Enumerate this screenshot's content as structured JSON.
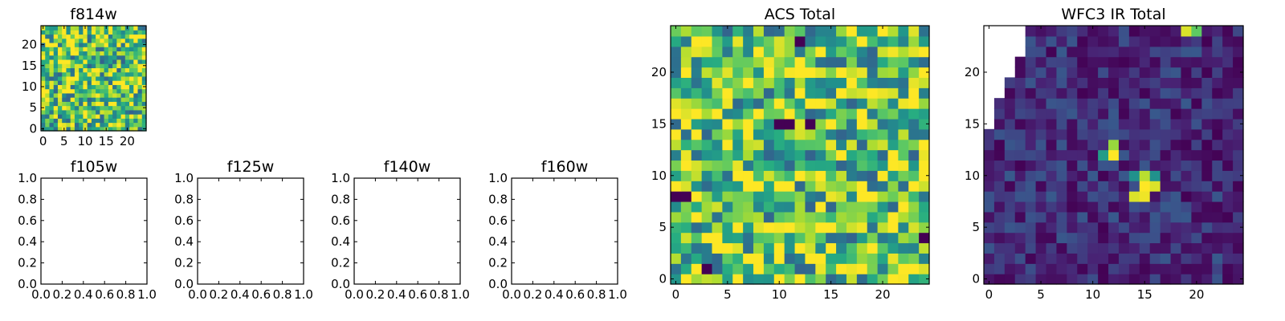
{
  "chart_data": [
    {
      "type": "heatmap",
      "title": "f814w",
      "grid_size": 25,
      "colormap": "viridis",
      "xlim": [
        -0.5,
        24.5
      ],
      "ylim": [
        -0.5,
        24.5
      ],
      "xticks": [
        0,
        5,
        10,
        15,
        20
      ],
      "xtick_labels": [
        "0",
        "5",
        "10",
        "15",
        "20"
      ],
      "yticks": [
        0,
        5,
        10,
        15,
        20
      ],
      "ytick_labels": [
        "0",
        "5",
        "10",
        "15",
        "20"
      ],
      "value_model": {
        "pattern": "noise",
        "base": 0.72,
        "spread": 0.4,
        "seed": 11
      },
      "features": []
    },
    {
      "type": "empty",
      "title": "f105w",
      "xlim": [
        0,
        1
      ],
      "ylim": [
        0,
        1
      ],
      "xticks": [
        0,
        0.2,
        0.4,
        0.6,
        0.8,
        1.0
      ],
      "xtick_labels": [
        "0.0",
        "0.2",
        "0.4",
        "0.6",
        "0.8",
        "1.0"
      ],
      "yticks": [
        0,
        0.2,
        0.4,
        0.6,
        0.8,
        1.0
      ],
      "ytick_labels": [
        "0.0",
        "0.2",
        "0.4",
        "0.6",
        "0.8",
        "1.0"
      ]
    },
    {
      "type": "empty",
      "title": "f125w",
      "xlim": [
        0,
        1
      ],
      "ylim": [
        0,
        1
      ],
      "xticks": [
        0,
        0.2,
        0.4,
        0.6,
        0.8,
        1.0
      ],
      "xtick_labels": [
        "0.0",
        "0.2",
        "0.4",
        "0.6",
        "0.8",
        "1.0"
      ],
      "yticks": [
        0,
        0.2,
        0.4,
        0.6,
        0.8,
        1.0
      ],
      "ytick_labels": [
        "0.0",
        "0.2",
        "0.4",
        "0.6",
        "0.8",
        "1.0"
      ]
    },
    {
      "type": "empty",
      "title": "f140w",
      "xlim": [
        0,
        1
      ],
      "ylim": [
        0,
        1
      ],
      "xticks": [
        0,
        0.2,
        0.4,
        0.6,
        0.8,
        1.0
      ],
      "xtick_labels": [
        "0.0",
        "0.2",
        "0.4",
        "0.6",
        "0.8",
        "1.0"
      ],
      "yticks": [
        0,
        0.2,
        0.4,
        0.6,
        0.8,
        1.0
      ],
      "ytick_labels": [
        "0.0",
        "0.2",
        "0.4",
        "0.6",
        "0.8",
        "1.0"
      ]
    },
    {
      "type": "empty",
      "title": "f160w",
      "xlim": [
        0,
        1
      ],
      "ylim": [
        0,
        1
      ],
      "xticks": [
        0,
        0.2,
        0.4,
        0.6,
        0.8,
        1.0
      ],
      "xtick_labels": [
        "0.0",
        "0.2",
        "0.4",
        "0.6",
        "0.8",
        "1.0"
      ],
      "yticks": [
        0,
        0.2,
        0.4,
        0.6,
        0.8,
        1.0
      ],
      "ytick_labels": [
        "0.0",
        "0.2",
        "0.4",
        "0.6",
        "0.8",
        "1.0"
      ]
    },
    {
      "type": "heatmap",
      "title": "ACS Total",
      "grid_size": 25,
      "colormap": "viridis",
      "xlim": [
        -0.5,
        24.5
      ],
      "ylim": [
        -0.5,
        24.5
      ],
      "xticks": [
        0,
        5,
        10,
        15,
        20
      ],
      "xtick_labels": [
        "0",
        "5",
        "10",
        "15",
        "20"
      ],
      "yticks": [
        0,
        5,
        10,
        15,
        20
      ],
      "ytick_labels": [
        "0",
        "5",
        "10",
        "15",
        "20"
      ],
      "value_model": {
        "pattern": "noise",
        "base": 0.72,
        "spread": 0.4,
        "seed": 29
      },
      "features": [
        {
          "col": 10,
          "row": 15,
          "value": 0.0
        },
        {
          "col": 11,
          "row": 15,
          "value": 0.0
        },
        {
          "col": 13,
          "row": 15,
          "value": 0.0
        },
        {
          "col": 0,
          "row": 8,
          "value": 0.0
        },
        {
          "col": 1,
          "row": 8,
          "value": 0.0
        },
        {
          "col": 12,
          "row": 23,
          "value": 0.0
        },
        {
          "col": 3,
          "row": 1,
          "value": 0.0
        },
        {
          "col": 24,
          "row": 4,
          "value": 0.0
        },
        {
          "col": 20,
          "row": 24,
          "value": 1.0
        },
        {
          "col": 21,
          "row": 11,
          "value": 1.0
        }
      ]
    },
    {
      "type": "heatmap",
      "title": "WFC3 IR Total",
      "grid_size": 25,
      "colormap": "viridis",
      "xlim": [
        -0.5,
        24.5
      ],
      "ylim": [
        -0.5,
        24.5
      ],
      "xticks": [
        0,
        5,
        10,
        15,
        20
      ],
      "xtick_labels": [
        "0",
        "5",
        "10",
        "15",
        "20"
      ],
      "yticks": [
        0,
        5,
        10,
        15,
        20
      ],
      "ytick_labels": [
        "0",
        "5",
        "10",
        "15",
        "20"
      ],
      "value_model": {
        "pattern": "noise",
        "base": 0.14,
        "spread": 0.14,
        "seed": 53
      },
      "masked_top_left_widths": [
        {
          "rows": [
            22,
            24
          ],
          "width": 4
        },
        {
          "rows": [
            20,
            21
          ],
          "width": 3
        },
        {
          "rows": [
            18,
            19
          ],
          "width": 2
        },
        {
          "rows": [
            15,
            17
          ],
          "width": 1
        }
      ],
      "features": [
        {
          "col": 12,
          "row": 12,
          "value": 1.0
        },
        {
          "col": 12,
          "row": 13,
          "value": 0.85
        },
        {
          "col": 11,
          "row": 12,
          "value": 0.55
        },
        {
          "col": 15,
          "row": 9,
          "value": 1.0
        },
        {
          "col": 16,
          "row": 9,
          "value": 0.95
        },
        {
          "col": 15,
          "row": 8,
          "value": 0.98
        },
        {
          "col": 14,
          "row": 8,
          "value": 0.95
        },
        {
          "col": 15,
          "row": 10,
          "value": 0.9
        },
        {
          "col": 14,
          "row": 10,
          "value": 0.5
        },
        {
          "col": 16,
          "row": 10,
          "value": 0.5
        },
        {
          "col": 19,
          "row": 24,
          "value": 0.95
        },
        {
          "col": 20,
          "row": 24,
          "value": 0.75
        }
      ]
    }
  ]
}
